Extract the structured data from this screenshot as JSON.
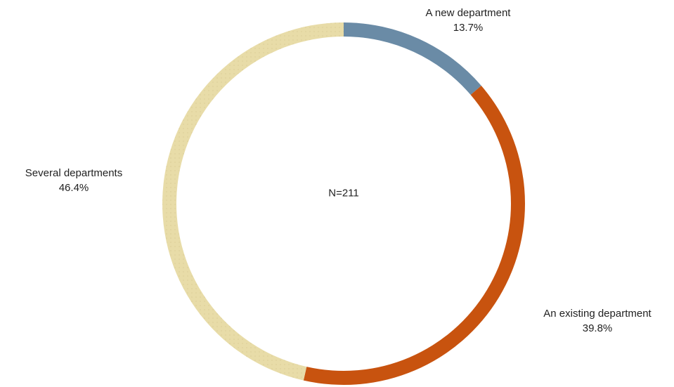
{
  "chart_data": {
    "type": "pie",
    "variant": "donut",
    "categories": [
      "A new department",
      "An existing department",
      "Several departments"
    ],
    "values": [
      13.7,
      39.8,
      46.4
    ],
    "value_labels": [
      "13.7%",
      "39.8%",
      "46.4%"
    ],
    "center_text": "N=211",
    "colors": [
      "#6a8ba6",
      "#c8530f",
      "#e8dca8"
    ],
    "legend": "none",
    "title": ""
  }
}
